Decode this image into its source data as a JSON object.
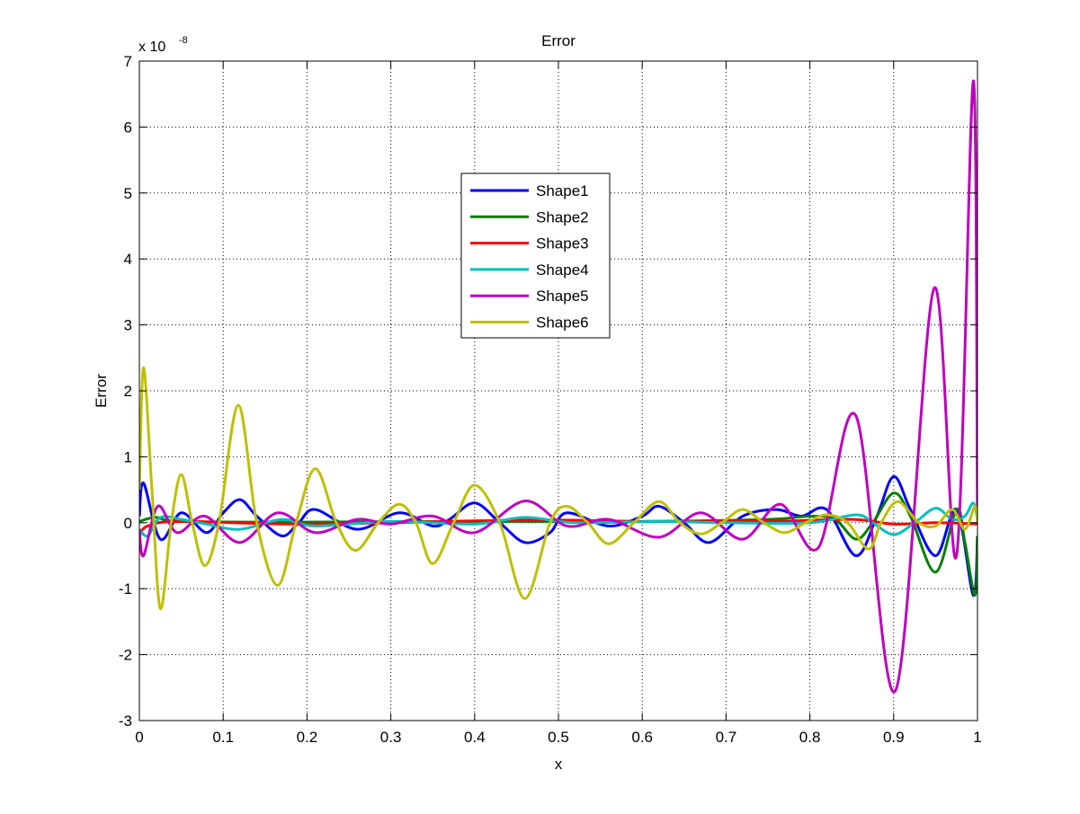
{
  "chart_data": {
    "type": "line",
    "title": "Error",
    "xlabel": "x",
    "ylabel": "Error",
    "y_exponent_label": "x 10",
    "y_exponent": "-8",
    "xlim": [
      0,
      1
    ],
    "ylim": [
      -3,
      7
    ],
    "xticks": [
      "0",
      "0.1",
      "0.2",
      "0.3",
      "0.4",
      "0.5",
      "0.6",
      "0.7",
      "0.8",
      "0.9",
      "1"
    ],
    "yticks": [
      "-3",
      "-2",
      "-1",
      "0",
      "1",
      "2",
      "3",
      "4",
      "5",
      "6",
      "7"
    ],
    "grid": true,
    "legend_position": "upper-center",
    "series": [
      {
        "name": "Shape1",
        "color": "#0000ff",
        "points": [
          [
            0,
            0.1
          ],
          [
            0.005,
            0.6
          ],
          [
            0.025,
            -0.25
          ],
          [
            0.05,
            0.15
          ],
          [
            0.08,
            -0.15
          ],
          [
            0.1,
            0.15
          ],
          [
            0.12,
            0.35
          ],
          [
            0.14,
            0.1
          ],
          [
            0.17,
            -0.2
          ],
          [
            0.19,
            0
          ],
          [
            0.21,
            0.2
          ],
          [
            0.26,
            -0.1
          ],
          [
            0.31,
            0.15
          ],
          [
            0.35,
            -0.05
          ],
          [
            0.37,
            0.05
          ],
          [
            0.4,
            0.3
          ],
          [
            0.43,
            0
          ],
          [
            0.46,
            -0.3
          ],
          [
            0.49,
            -0.15
          ],
          [
            0.51,
            0.15
          ],
          [
            0.56,
            -0.05
          ],
          [
            0.6,
            0.1
          ],
          [
            0.62,
            0.25
          ],
          [
            0.65,
            0
          ],
          [
            0.68,
            -0.3
          ],
          [
            0.72,
            0.1
          ],
          [
            0.76,
            0.2
          ],
          [
            0.79,
            0.1
          ],
          [
            0.82,
            0.2
          ],
          [
            0.855,
            -0.5
          ],
          [
            0.88,
            0.1
          ],
          [
            0.9,
            0.7
          ],
          [
            0.92,
            0.2
          ],
          [
            0.95,
            -0.5
          ],
          [
            0.975,
            0.2
          ],
          [
            0.995,
            -1.1
          ],
          [
            1,
            -0.2
          ]
        ]
      },
      {
        "name": "Shape2",
        "color": "#008000",
        "points": [
          [
            0,
            0.02
          ],
          [
            0.02,
            0.08
          ],
          [
            0.05,
            0.02
          ],
          [
            0.2,
            0.01
          ],
          [
            0.4,
            0.02
          ],
          [
            0.6,
            0.02
          ],
          [
            0.75,
            0.05
          ],
          [
            0.8,
            0.1
          ],
          [
            0.83,
            0.05
          ],
          [
            0.855,
            -0.25
          ],
          [
            0.875,
            0
          ],
          [
            0.9,
            0.45
          ],
          [
            0.92,
            0.1
          ],
          [
            0.95,
            -0.75
          ],
          [
            0.975,
            0.2
          ],
          [
            0.985,
            -0.3
          ],
          [
            0.997,
            -1.1
          ],
          [
            1,
            -0.2
          ]
        ]
      },
      {
        "name": "Shape3",
        "color": "#ff0000",
        "points": [
          [
            0,
            -0.2
          ],
          [
            0.01,
            -0.05
          ],
          [
            0.05,
            0.02
          ],
          [
            0.2,
            -0.02
          ],
          [
            0.46,
            0.04
          ],
          [
            0.6,
            0.02
          ],
          [
            0.75,
            0.02
          ],
          [
            0.85,
            0.05
          ],
          [
            0.9,
            -0.02
          ],
          [
            0.95,
            0
          ],
          [
            1,
            -0.02
          ]
        ]
      },
      {
        "name": "Shape4",
        "color": "#00bfbf",
        "points": [
          [
            0,
            -0.1
          ],
          [
            0.01,
            -0.2
          ],
          [
            0.025,
            0.08
          ],
          [
            0.05,
            0.05
          ],
          [
            0.08,
            -0.02
          ],
          [
            0.12,
            -0.1
          ],
          [
            0.17,
            0.05
          ],
          [
            0.21,
            -0.05
          ],
          [
            0.3,
            0.02
          ],
          [
            0.4,
            -0.02
          ],
          [
            0.46,
            0.08
          ],
          [
            0.52,
            0
          ],
          [
            0.62,
            0.02
          ],
          [
            0.7,
            0
          ],
          [
            0.8,
            0
          ],
          [
            0.855,
            0.12
          ],
          [
            0.875,
            0
          ],
          [
            0.9,
            -0.18
          ],
          [
            0.925,
            0
          ],
          [
            0.95,
            0.22
          ],
          [
            0.97,
            0.05
          ],
          [
            0.985,
            0.1
          ],
          [
            0.995,
            0.3
          ],
          [
            1,
            0.05
          ]
        ]
      },
      {
        "name": "Shape5",
        "color": "#bf00bf",
        "points": [
          [
            0,
            -0.1
          ],
          [
            0.005,
            -0.5
          ],
          [
            0.022,
            0.25
          ],
          [
            0.045,
            -0.15
          ],
          [
            0.078,
            0.1
          ],
          [
            0.12,
            -0.3
          ],
          [
            0.165,
            0.15
          ],
          [
            0.21,
            -0.15
          ],
          [
            0.26,
            0.05
          ],
          [
            0.3,
            -0.02
          ],
          [
            0.35,
            0.1
          ],
          [
            0.4,
            -0.15
          ],
          [
            0.46,
            0.33
          ],
          [
            0.51,
            -0.05
          ],
          [
            0.56,
            0.05
          ],
          [
            0.62,
            -0.22
          ],
          [
            0.67,
            0.15
          ],
          [
            0.72,
            -0.25
          ],
          [
            0.765,
            0.28
          ],
          [
            0.81,
            -0.38
          ],
          [
            0.855,
            1.62
          ],
          [
            0.902,
            -2.55
          ],
          [
            0.948,
            3.55
          ],
          [
            0.975,
            -0.5
          ],
          [
            0.995,
            6.7
          ],
          [
            1,
            0
          ]
        ]
      },
      {
        "name": "Shape6",
        "color": "#bfbf00",
        "points": [
          [
            0,
            0.5
          ],
          [
            0.005,
            2.35
          ],
          [
            0.015,
            0.5
          ],
          [
            0.025,
            -1.3
          ],
          [
            0.038,
            0
          ],
          [
            0.05,
            0.73
          ],
          [
            0.063,
            0
          ],
          [
            0.078,
            -0.65
          ],
          [
            0.095,
            0
          ],
          [
            0.118,
            1.78
          ],
          [
            0.14,
            0
          ],
          [
            0.165,
            -0.95
          ],
          [
            0.187,
            0
          ],
          [
            0.21,
            0.82
          ],
          [
            0.235,
            0
          ],
          [
            0.258,
            -0.42
          ],
          [
            0.285,
            0
          ],
          [
            0.31,
            0.28
          ],
          [
            0.33,
            0
          ],
          [
            0.35,
            -0.62
          ],
          [
            0.375,
            0
          ],
          [
            0.4,
            0.57
          ],
          [
            0.43,
            0
          ],
          [
            0.46,
            -1.15
          ],
          [
            0.49,
            0
          ],
          [
            0.51,
            0.25
          ],
          [
            0.535,
            0
          ],
          [
            0.56,
            -0.32
          ],
          [
            0.59,
            0
          ],
          [
            0.62,
            0.32
          ],
          [
            0.645,
            0
          ],
          [
            0.67,
            -0.17
          ],
          [
            0.695,
            0
          ],
          [
            0.72,
            0.2
          ],
          [
            0.745,
            0
          ],
          [
            0.77,
            -0.15
          ],
          [
            0.795,
            0
          ],
          [
            0.82,
            0.12
          ],
          [
            0.845,
            0
          ],
          [
            0.87,
            -0.4
          ],
          [
            0.885,
            0
          ],
          [
            0.905,
            0.32
          ],
          [
            0.93,
            0
          ],
          [
            0.95,
            -0.05
          ],
          [
            0.97,
            0.2
          ],
          [
            0.985,
            -0.1
          ],
          [
            0.997,
            0.25
          ],
          [
            1,
            0
          ]
        ]
      }
    ]
  }
}
